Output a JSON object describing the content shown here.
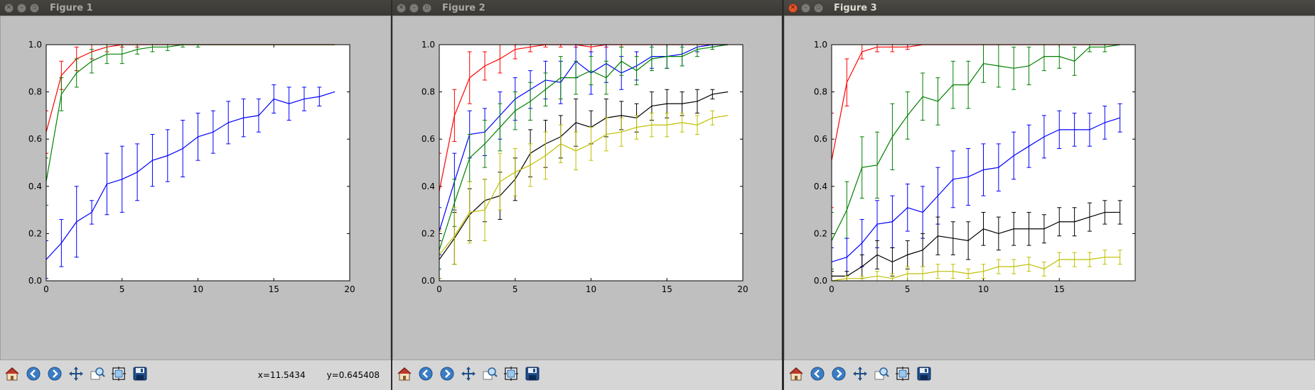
{
  "windows": [
    {
      "title": "Figure 1",
      "active": false,
      "status": {
        "x": "x=11.5434",
        "y": "y=0.645408"
      }
    },
    {
      "title": "Figure 2",
      "active": false,
      "status": {
        "x": "",
        "y": ""
      }
    },
    {
      "title": "Figure 3",
      "active": true,
      "status": {
        "x": "",
        "y": ""
      }
    }
  ],
  "toolbar_icons": [
    "home-icon",
    "back-icon",
    "forward-icon",
    "pan-icon",
    "zoom-icon",
    "subplots-icon",
    "save-icon"
  ],
  "colors": {
    "red": "#ff0000",
    "green": "#008000",
    "blue": "#0000ff",
    "black": "#000000",
    "yellow": "#bfbf00"
  },
  "chart_data": [
    {
      "type": "line",
      "xlim": [
        0,
        20
      ],
      "ylim": [
        0,
        1
      ],
      "xticks": [
        "0",
        "5",
        "10",
        "15",
        "20"
      ],
      "yticks": [
        "0.0",
        "0.2",
        "0.4",
        "0.6",
        "0.8",
        "1.0"
      ],
      "series": [
        {
          "color": "red",
          "x": [
            0,
            1,
            2,
            3,
            4,
            5,
            6,
            7,
            8,
            9,
            10,
            11,
            12,
            13,
            14,
            15,
            16,
            17,
            18,
            19
          ],
          "y": [
            0.63,
            0.87,
            0.94,
            0.97,
            0.99,
            1.0,
            1.0,
            1.0,
            1.0,
            1.0,
            1.0,
            1.0,
            1.0,
            1.0,
            1.0,
            1.0,
            1.0,
            1.0,
            1.0,
            1.0
          ],
          "err": [
            0.09,
            0.06,
            0.05,
            0.03,
            0.02,
            0.01,
            0.01,
            0,
            0,
            0,
            0,
            0,
            0,
            0,
            0,
            0,
            0,
            0,
            0,
            0
          ]
        },
        {
          "color": "green",
          "x": [
            0,
            1,
            2,
            3,
            4,
            5,
            6,
            7,
            8,
            9,
            10,
            11,
            12,
            13,
            14,
            15,
            16,
            17,
            18,
            19
          ],
          "y": [
            0.42,
            0.79,
            0.88,
            0.93,
            0.96,
            0.96,
            0.98,
            0.99,
            0.99,
            1.0,
            1.0,
            1.0,
            1.0,
            1.0,
            1.0,
            1.0,
            1.0,
            1.0,
            1.0,
            1.0
          ],
          "err": [
            0.1,
            0.07,
            0.06,
            0.05,
            0.04,
            0.04,
            0.02,
            0.02,
            0.015,
            0.01,
            0.01,
            0,
            0,
            0,
            0,
            0,
            0,
            0,
            0,
            0
          ]
        },
        {
          "color": "blue",
          "x": [
            0,
            1,
            2,
            3,
            4,
            5,
            6,
            7,
            8,
            9,
            10,
            11,
            12,
            13,
            14,
            15,
            16,
            17,
            18,
            19
          ],
          "y": [
            0.09,
            0.16,
            0.25,
            0.29,
            0.41,
            0.43,
            0.46,
            0.51,
            0.53,
            0.56,
            0.61,
            0.63,
            0.67,
            0.69,
            0.7,
            0.77,
            0.75,
            0.77,
            0.78,
            0.8
          ],
          "err": [
            0.08,
            0.1,
            0.15,
            0.05,
            0.13,
            0.14,
            0.12,
            0.11,
            0.11,
            0.12,
            0.1,
            0.09,
            0.09,
            0.08,
            0.07,
            0.06,
            0.07,
            0.05,
            0.04,
            0.0
          ]
        }
      ]
    },
    {
      "type": "line",
      "xlim": [
        0,
        20
      ],
      "ylim": [
        0,
        1
      ],
      "xticks": [
        "0",
        "5",
        "10",
        "15",
        "20"
      ],
      "yticks": [
        "0.0",
        "0.2",
        "0.4",
        "0.6",
        "0.8",
        "1.0"
      ],
      "series": [
        {
          "color": "red",
          "x": [
            0,
            1,
            2,
            3,
            4,
            5,
            6,
            7,
            8,
            9,
            10,
            11,
            12,
            13,
            14,
            15,
            16,
            17,
            18,
            19
          ],
          "y": [
            0.38,
            0.7,
            0.86,
            0.91,
            0.94,
            0.98,
            0.99,
            1.0,
            1.0,
            1.0,
            0.99,
            1.0,
            1.0,
            1.0,
            1.0,
            1.0,
            1.0,
            1.0,
            1.0,
            1.0
          ],
          "err": [
            0.16,
            0.11,
            0.11,
            0.06,
            0.06,
            0.04,
            0.02,
            0.01,
            0.01,
            0.01,
            0.02,
            0.01,
            0.01,
            0,
            0,
            0,
            0,
            0,
            0,
            0
          ]
        },
        {
          "color": "blue",
          "x": [
            0,
            1,
            2,
            3,
            4,
            5,
            6,
            7,
            8,
            9,
            10,
            11,
            12,
            13,
            14,
            15,
            16,
            17,
            18,
            19
          ],
          "y": [
            0.21,
            0.42,
            0.62,
            0.63,
            0.7,
            0.77,
            0.81,
            0.85,
            0.84,
            0.93,
            0.88,
            0.92,
            0.88,
            0.91,
            0.95,
            0.95,
            0.96,
            0.99,
            1.0,
            1.0
          ],
          "err": [
            0.1,
            0.12,
            0.1,
            0.1,
            0.1,
            0.09,
            0.08,
            0.08,
            0.09,
            0.07,
            0.09,
            0.08,
            0.07,
            0.06,
            0.05,
            0.05,
            0.05,
            0.02,
            0.01,
            0
          ]
        },
        {
          "color": "green",
          "x": [
            0,
            1,
            2,
            3,
            4,
            5,
            6,
            7,
            8,
            9,
            10,
            11,
            12,
            13,
            14,
            15,
            16,
            17,
            18,
            19
          ],
          "y": [
            0.13,
            0.33,
            0.52,
            0.58,
            0.65,
            0.72,
            0.76,
            0.81,
            0.86,
            0.86,
            0.89,
            0.86,
            0.93,
            0.89,
            0.94,
            0.95,
            0.95,
            0.98,
            0.99,
            1.0
          ],
          "err": [
            0.08,
            0.1,
            0.1,
            0.1,
            0.1,
            0.08,
            0.08,
            0.07,
            0.09,
            0.07,
            0.06,
            0.07,
            0.06,
            0.06,
            0.05,
            0.05,
            0.04,
            0.03,
            0.01,
            0
          ]
        },
        {
          "color": "black",
          "x": [
            0,
            1,
            2,
            3,
            4,
            5,
            6,
            7,
            8,
            9,
            10,
            11,
            12,
            13,
            14,
            15,
            16,
            17,
            18,
            19
          ],
          "y": [
            0.09,
            0.18,
            0.28,
            0.34,
            0.36,
            0.43,
            0.54,
            0.58,
            0.61,
            0.67,
            0.65,
            0.69,
            0.7,
            0.69,
            0.74,
            0.75,
            0.75,
            0.76,
            0.79,
            0.8
          ],
          "err": [
            0.08,
            0.11,
            0.11,
            0.09,
            0.1,
            0.09,
            0.1,
            0.1,
            0.09,
            0.1,
            0.07,
            0.08,
            0.06,
            0.06,
            0.06,
            0.06,
            0.05,
            0.05,
            0.02,
            0
          ]
        },
        {
          "color": "yellow",
          "x": [
            0,
            1,
            2,
            3,
            4,
            5,
            6,
            7,
            8,
            9,
            10,
            11,
            12,
            13,
            14,
            15,
            16,
            17,
            18,
            19
          ],
          "y": [
            0.11,
            0.19,
            0.29,
            0.3,
            0.42,
            0.46,
            0.49,
            0.53,
            0.58,
            0.55,
            0.58,
            0.62,
            0.63,
            0.65,
            0.66,
            0.66,
            0.67,
            0.66,
            0.69,
            0.7
          ],
          "err": [
            0.1,
            0.12,
            0.13,
            0.13,
            0.12,
            0.1,
            0.09,
            0.1,
            0.08,
            0.08,
            0.07,
            0.07,
            0.06,
            0.05,
            0.05,
            0.05,
            0.04,
            0.04,
            0.03,
            0
          ]
        }
      ]
    },
    {
      "type": "line",
      "xlim": [
        0,
        20
      ],
      "ylim": [
        0,
        1
      ],
      "xticks": [
        "0",
        "5",
        "10",
        "15"
      ],
      "yticks": [
        "0.0",
        "0.2",
        "0.4",
        "0.6",
        "0.8",
        "1.0"
      ],
      "series": [
        {
          "color": "red",
          "x": [
            0,
            1,
            2,
            3,
            4,
            5,
            6,
            7,
            8,
            9,
            10,
            11,
            12,
            13,
            14,
            15,
            16,
            17,
            18,
            19
          ],
          "y": [
            0.51,
            0.84,
            0.97,
            0.99,
            0.99,
            0.99,
            1.0,
            1.0,
            1.0,
            1.0,
            1.0,
            1.0,
            1.0,
            1.0,
            1.0,
            1.0,
            1.0,
            1.0,
            1.0,
            1.0
          ],
          "err": [
            0.2,
            0.1,
            0.03,
            0.02,
            0.02,
            0.01,
            0,
            0,
            0,
            0,
            0,
            0,
            0,
            0,
            0,
            0,
            0,
            0,
            0,
            0
          ]
        },
        {
          "color": "green",
          "x": [
            0,
            1,
            2,
            3,
            4,
            5,
            6,
            7,
            8,
            9,
            10,
            11,
            12,
            13,
            14,
            15,
            16,
            17,
            18,
            19
          ],
          "y": [
            0.17,
            0.3,
            0.48,
            0.49,
            0.61,
            0.7,
            0.78,
            0.76,
            0.83,
            0.83,
            0.92,
            0.91,
            0.9,
            0.91,
            0.95,
            0.95,
            0.93,
            0.99,
            0.99,
            1.0
          ],
          "err": [
            0.12,
            0.12,
            0.13,
            0.14,
            0.14,
            0.1,
            0.1,
            0.1,
            0.1,
            0.1,
            0.08,
            0.09,
            0.09,
            0.08,
            0.06,
            0.05,
            0.06,
            0.02,
            0.02,
            0
          ]
        },
        {
          "color": "blue",
          "x": [
            0,
            1,
            2,
            3,
            4,
            5,
            6,
            7,
            8,
            9,
            10,
            11,
            12,
            13,
            14,
            15,
            16,
            17,
            18,
            19
          ],
          "y": [
            0.08,
            0.1,
            0.16,
            0.24,
            0.25,
            0.31,
            0.29,
            0.36,
            0.43,
            0.44,
            0.47,
            0.48,
            0.53,
            0.57,
            0.61,
            0.64,
            0.64,
            0.64,
            0.67,
            0.69
          ],
          "err": [
            0.06,
            0.08,
            0.1,
            0.1,
            0.11,
            0.1,
            0.11,
            0.12,
            0.12,
            0.12,
            0.11,
            0.1,
            0.1,
            0.09,
            0.09,
            0.08,
            0.07,
            0.07,
            0.07,
            0.06
          ]
        },
        {
          "color": "black",
          "x": [
            0,
            1,
            2,
            3,
            4,
            5,
            6,
            7,
            8,
            9,
            10,
            11,
            12,
            13,
            14,
            15,
            16,
            17,
            18,
            19
          ],
          "y": [
            0.02,
            0.02,
            0.06,
            0.11,
            0.08,
            0.11,
            0.13,
            0.19,
            0.18,
            0.17,
            0.22,
            0.2,
            0.22,
            0.22,
            0.22,
            0.25,
            0.25,
            0.27,
            0.29,
            0.29
          ],
          "err": [
            0.02,
            0.02,
            0.05,
            0.06,
            0.06,
            0.06,
            0.07,
            0.08,
            0.07,
            0.08,
            0.07,
            0.07,
            0.07,
            0.07,
            0.06,
            0.06,
            0.06,
            0.06,
            0.05,
            0.05
          ]
        },
        {
          "color": "yellow",
          "x": [
            0,
            1,
            2,
            3,
            4,
            5,
            6,
            7,
            8,
            9,
            10,
            11,
            12,
            13,
            14,
            15,
            16,
            17,
            18,
            19
          ],
          "y": [
            0.0,
            0.01,
            0.01,
            0.02,
            0.01,
            0.03,
            0.03,
            0.04,
            0.04,
            0.03,
            0.04,
            0.06,
            0.06,
            0.07,
            0.05,
            0.09,
            0.09,
            0.09,
            0.1,
            0.1
          ],
          "err": [
            0.0,
            0.01,
            0.01,
            0.02,
            0.02,
            0.03,
            0.03,
            0.03,
            0.03,
            0.02,
            0.03,
            0.03,
            0.03,
            0.03,
            0.03,
            0.03,
            0.03,
            0.03,
            0.03,
            0.03
          ]
        }
      ]
    }
  ]
}
